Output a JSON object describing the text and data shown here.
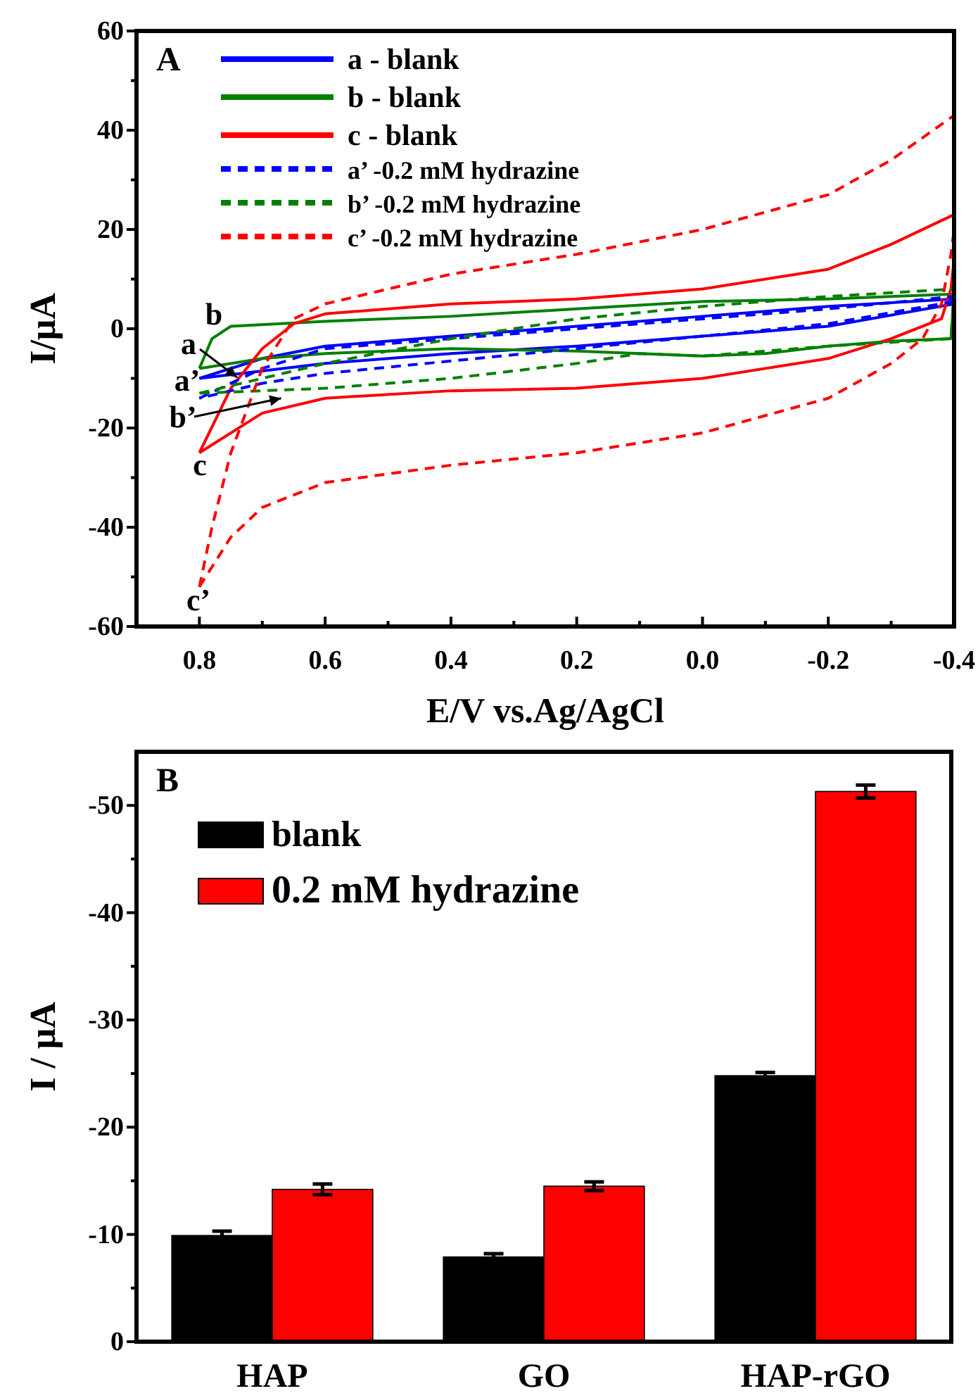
{
  "chart_data": [
    {
      "type": "line",
      "title": "A",
      "xlabel": "E/V vs.Ag/AgCl",
      "ylabel": "I/μA",
      "xlim": [
        0.9,
        -0.4
      ],
      "ylim": [
        -60,
        60
      ],
      "xticks": [
        0.8,
        {
          "value": 0.7,
          "label": null
        },
        0.6,
        {
          "value": 0.5,
          "label": null
        },
        0.4,
        {
          "value": 0.3,
          "label": null
        },
        0.2,
        {
          "value": 0.1,
          "label": null
        },
        {
          "value": 0,
          "label": "0.0"
        },
        {
          "value": -0.1,
          "label": null
        },
        -0.2,
        {
          "value": -0.3,
          "label": null
        },
        -0.4
      ],
      "yticks": [
        -60,
        {
          "value": -50,
          "label": null
        },
        -40,
        {
          "value": -30,
          "label": null
        },
        -20,
        {
          "value": -10,
          "label": null
        },
        0,
        {
          "value": 10,
          "label": null
        },
        20,
        {
          "value": 30,
          "label": null
        },
        40,
        {
          "value": 50,
          "label": null
        },
        60
      ],
      "legend": "top left",
      "grid": false,
      "series": [
        {
          "name": "a - blank",
          "color": "#0000ff",
          "line_style": "solid",
          "x": [
            0.8,
            0.7,
            0.6,
            0.4,
            0.2,
            0.0,
            -0.2,
            -0.4
          ],
          "values": [
            -10,
            -6,
            -3.5,
            -1.5,
            0.5,
            2.5,
            4.5,
            6
          ]
        },
        {
          "color": "#0000ff",
          "line_style": "solid",
          "x": [
            -0.4,
            -0.2,
            0.0,
            0.2,
            0.4,
            0.6,
            0.7,
            0.8
          ],
          "values": [
            5,
            0.5,
            -1.5,
            -3.5,
            -5,
            -7,
            -8.5,
            -10
          ]
        },
        {
          "name": "b - blank",
          "color": "#008000",
          "line_style": "solid",
          "x": [
            0.8,
            0.78,
            0.75,
            0.6,
            0.4,
            0.2,
            0.0,
            -0.2,
            -0.4
          ],
          "values": [
            -8,
            -2,
            0.5,
            1.5,
            2.5,
            4,
            5.5,
            6,
            7
          ]
        },
        {
          "color": "#008000",
          "line_style": "solid",
          "x": [
            -0.4,
            -0.395,
            -0.3,
            -0.2,
            -0.1,
            0.0,
            0.2,
            0.4,
            0.6,
            0.7,
            0.8
          ],
          "values": [
            7,
            -2,
            -2.5,
            -3.5,
            -5,
            -5.5,
            -4.5,
            -4,
            -5,
            -6,
            -8
          ]
        },
        {
          "name": "c - blank",
          "color": "#ff0000",
          "line_style": "solid",
          "x": [
            0.8,
            0.75,
            0.7,
            0.65,
            0.6,
            0.4,
            0.2,
            0.0,
            -0.2,
            -0.3,
            -0.4
          ],
          "values": [
            -25,
            -12,
            -4,
            1,
            3,
            5,
            6,
            8,
            12,
            17,
            23
          ]
        },
        {
          "color": "#ff0000",
          "line_style": "solid",
          "x": [
            0.8,
            0.7,
            0.6,
            0.4,
            0.2,
            0.0,
            -0.2,
            -0.3,
            -0.38,
            -0.395,
            -0.4
          ],
          "values": [
            -25,
            -17,
            -14,
            -12.5,
            -12,
            -10,
            -6,
            -2,
            2,
            8,
            14
          ]
        },
        {
          "name": "a’ -0.2 mM hydrazine",
          "color": "#0000ff",
          "line_style": "dashed",
          "x": [
            0.8,
            0.7,
            0.6,
            0.4,
            0.2,
            0.0,
            -0.2,
            -0.4
          ],
          "values": [
            -14,
            -8,
            -4,
            -2,
            0,
            2,
            4,
            6.5
          ]
        },
        {
          "color": "#0000ff",
          "line_style": "dashed",
          "x": [
            -0.4,
            -0.2,
            0.0,
            0.2,
            0.4,
            0.6,
            0.7,
            0.8
          ],
          "values": [
            5.5,
            1,
            -1.5,
            -4,
            -6.5,
            -9,
            -11,
            -14
          ]
        },
        {
          "name": "b’ -0.2 mM hydrazine",
          "color": "#008000",
          "line_style": "dashed",
          "x": [
            0.8,
            0.7,
            0.6,
            0.4,
            0.2,
            0.0,
            -0.2,
            -0.4
          ],
          "values": [
            -13,
            -10,
            -7,
            -2,
            2,
            4.5,
            6.5,
            8
          ]
        },
        {
          "color": "#008000",
          "line_style": "dashed",
          "x": [
            -0.4,
            -0.395,
            -0.2,
            0.0,
            0.1,
            0.2,
            0.4,
            0.6,
            0.7,
            0.8
          ],
          "values": [
            8,
            -2,
            -3.5,
            -5.5,
            -5,
            -7,
            -10,
            -12,
            -12.5,
            -13
          ]
        },
        {
          "name": "c’ -0.2 mM hydrazine",
          "color": "#ff0000",
          "line_style": "dashed",
          "x": [
            0.8,
            0.78,
            0.75,
            0.7,
            0.65,
            0.6,
            0.4,
            0.2,
            0.0,
            -0.2,
            -0.3,
            -0.4
          ],
          "values": [
            -52,
            -40,
            -25,
            -8,
            2,
            5,
            11,
            15,
            20,
            27,
            34,
            43
          ]
        },
        {
          "color": "#ff0000",
          "line_style": "dashed",
          "x": [
            0.8,
            0.75,
            0.7,
            0.6,
            0.4,
            0.2,
            0.0,
            -0.2,
            -0.3,
            -0.35,
            -0.38,
            -0.395,
            -0.4
          ],
          "values": [
            -52,
            -42,
            -36,
            -31,
            -27.5,
            -25,
            -21,
            -14,
            -7,
            -2,
            5,
            15,
            20
          ]
        }
      ],
      "annotations": [
        "b",
        {
          "text": "a",
          "x": 0.74,
          "y": -9.8
        },
        "a’",
        {
          "text": "b’",
          "x": 0.67,
          "y": -14
        },
        "c",
        "c’"
      ]
    },
    {
      "type": "bar",
      "title": "B",
      "ylabel": "I / μA",
      "categories": [
        "HAP",
        "GO",
        "HAP-rGO"
      ],
      "ylim": [
        0,
        -55
      ],
      "yticks": [
        0,
        {
          "value": -5,
          "label": null
        },
        -10,
        {
          "value": -15,
          "label": null
        },
        -20,
        {
          "value": -25,
          "label": null
        },
        -30,
        {
          "value": -35,
          "label": null
        },
        -40,
        {
          "value": -45,
          "label": null
        },
        -50
      ],
      "legend": "top left",
      "grid": false,
      "series": [
        {
          "name": "blank",
          "color": "#000000",
          "values": [
            -9.9,
            -7.9,
            -24.8
          ],
          "errors": [
            0.4,
            0.3,
            0.3
          ]
        },
        {
          "name": "0.2 mM hydrazine",
          "color": "#ff0000",
          "values": [
            -14.2,
            -14.5,
            -51.3
          ],
          "errors": [
            0.5,
            0.4,
            0.6
          ]
        }
      ]
    }
  ]
}
